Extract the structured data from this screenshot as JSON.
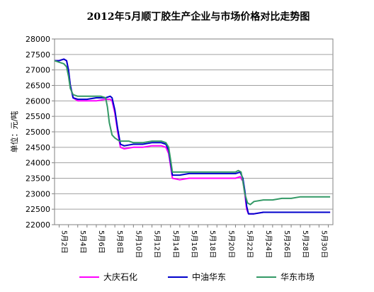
{
  "chart_data": {
    "type": "line",
    "title": "2012年5月顺丁胶生产企业与市场价格对比走势图",
    "ylabel": "单位：元/吨",
    "xlabel": "",
    "ylim": [
      22000,
      28000
    ],
    "yticks": [
      22000,
      22500,
      23000,
      23500,
      24000,
      24500,
      25000,
      25500,
      26000,
      26500,
      27000,
      27500,
      28000
    ],
    "xlim": [
      1.5,
      31.5
    ],
    "xticks": [
      "5月2日",
      "5月4日",
      "5月6日",
      "5月8日",
      "5月10日",
      "5月12日",
      "5月14日",
      "5月16日",
      "5月18日",
      "5月20日",
      "5月22日",
      "5月24日",
      "5月26日",
      "5月28日",
      "5月30日"
    ],
    "grid": "horizontal",
    "legend": "bottom",
    "series": [
      {
        "name": "大庆石化",
        "color": "#ff00ff",
        "points": [
          [
            1.5,
            27300
          ],
          [
            2,
            27300
          ],
          [
            2.5,
            27350
          ],
          [
            2.8,
            27300
          ],
          [
            3,
            27000
          ],
          [
            3.2,
            26500
          ],
          [
            3.5,
            26100
          ],
          [
            4,
            26000
          ],
          [
            5,
            26000
          ],
          [
            6,
            26000
          ],
          [
            7,
            26050
          ],
          [
            7.5,
            26050
          ],
          [
            7.7,
            26000
          ],
          [
            8,
            25600
          ],
          [
            8.3,
            25000
          ],
          [
            8.6,
            24500
          ],
          [
            9,
            24450
          ],
          [
            10,
            24500
          ],
          [
            11,
            24500
          ],
          [
            12,
            24550
          ],
          [
            13,
            24550
          ],
          [
            13.5,
            24500
          ],
          [
            13.8,
            24300
          ],
          [
            14,
            23900
          ],
          [
            14.2,
            23500
          ],
          [
            15,
            23450
          ],
          [
            16,
            23500
          ],
          [
            18,
            23500
          ],
          [
            20,
            23500
          ],
          [
            21,
            23500
          ],
          [
            21.5,
            23550
          ],
          [
            21.8,
            23400
          ],
          [
            22,
            23000
          ],
          [
            22.2,
            22500
          ],
          [
            22.4,
            22350
          ],
          [
            23,
            22350
          ],
          [
            24,
            22400
          ],
          [
            26,
            22400
          ],
          [
            28,
            22400
          ],
          [
            30,
            22400
          ],
          [
            31.2,
            22400
          ]
        ]
      },
      {
        "name": "中油华东",
        "color": "#0000cc",
        "points": [
          [
            1.5,
            27300
          ],
          [
            2,
            27300
          ],
          [
            2.5,
            27350
          ],
          [
            2.8,
            27300
          ],
          [
            3,
            27000
          ],
          [
            3.2,
            26500
          ],
          [
            3.5,
            26100
          ],
          [
            4,
            26050
          ],
          [
            5,
            26050
          ],
          [
            6,
            26100
          ],
          [
            7,
            26100
          ],
          [
            7.5,
            26150
          ],
          [
            7.7,
            26100
          ],
          [
            8,
            25700
          ],
          [
            8.3,
            25100
          ],
          [
            8.6,
            24600
          ],
          [
            9,
            24550
          ],
          [
            10,
            24600
          ],
          [
            11,
            24600
          ],
          [
            12,
            24650
          ],
          [
            13,
            24650
          ],
          [
            13.5,
            24600
          ],
          [
            13.8,
            24400
          ],
          [
            14,
            24000
          ],
          [
            14.2,
            23600
          ],
          [
            15,
            23600
          ],
          [
            16,
            23650
          ],
          [
            18,
            23650
          ],
          [
            20,
            23650
          ],
          [
            21,
            23650
          ],
          [
            21.5,
            23700
          ],
          [
            21.8,
            23500
          ],
          [
            22,
            23100
          ],
          [
            22.2,
            22600
          ],
          [
            22.4,
            22350
          ],
          [
            23,
            22350
          ],
          [
            24,
            22400
          ],
          [
            26,
            22400
          ],
          [
            28,
            22400
          ],
          [
            30,
            22400
          ],
          [
            31.2,
            22400
          ]
        ]
      },
      {
        "name": "华东市场",
        "color": "#339966",
        "points": [
          [
            1.5,
            27300
          ],
          [
            2,
            27250
          ],
          [
            2.5,
            27200
          ],
          [
            2.8,
            27100
          ],
          [
            3,
            26800
          ],
          [
            3.2,
            26400
          ],
          [
            3.5,
            26200
          ],
          [
            4,
            26150
          ],
          [
            5,
            26150
          ],
          [
            6,
            26150
          ],
          [
            6.5,
            26150
          ],
          [
            7,
            26100
          ],
          [
            7.2,
            25800
          ],
          [
            7.4,
            25300
          ],
          [
            7.7,
            24900
          ],
          [
            8,
            24800
          ],
          [
            8.5,
            24700
          ],
          [
            9,
            24700
          ],
          [
            9.5,
            24700
          ],
          [
            10,
            24650
          ],
          [
            11,
            24650
          ],
          [
            12,
            24700
          ],
          [
            13,
            24700
          ],
          [
            13.5,
            24650
          ],
          [
            13.8,
            24500
          ],
          [
            14,
            24100
          ],
          [
            14.2,
            23700
          ],
          [
            15,
            23700
          ],
          [
            16,
            23700
          ],
          [
            18,
            23700
          ],
          [
            20,
            23700
          ],
          [
            21,
            23700
          ],
          [
            21.3,
            23750
          ],
          [
            21.6,
            23700
          ],
          [
            21.8,
            23400
          ],
          [
            22,
            23000
          ],
          [
            22.3,
            22700
          ],
          [
            22.6,
            22650
          ],
          [
            23,
            22750
          ],
          [
            24,
            22800
          ],
          [
            25,
            22800
          ],
          [
            26,
            22850
          ],
          [
            27,
            22850
          ],
          [
            28,
            22900
          ],
          [
            30,
            22900
          ],
          [
            31.2,
            22900
          ]
        ]
      }
    ]
  }
}
